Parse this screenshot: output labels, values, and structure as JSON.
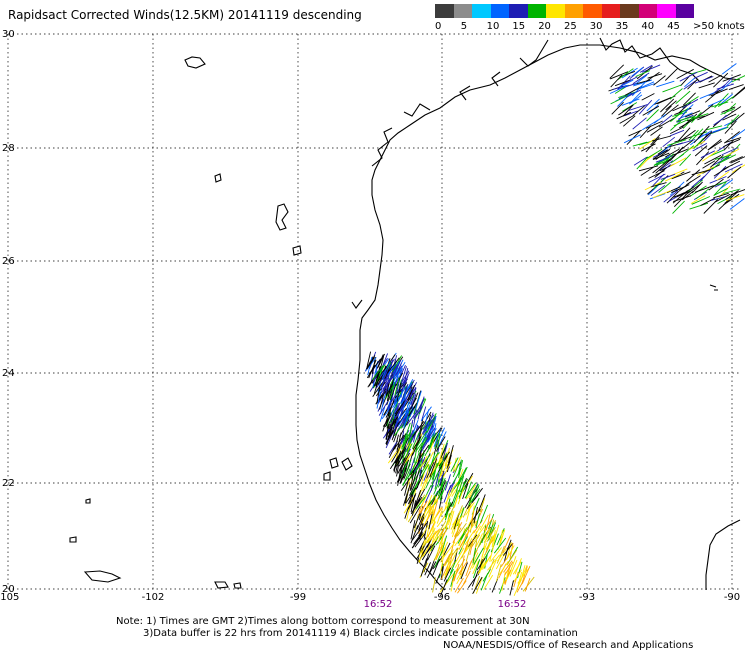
{
  "title": "Rapidsact Corrected Winds(12.5KM) 20141119 descending",
  "legend": {
    "colors": [
      "#3c3c3c",
      "#8c8c8c",
      "#00c8ff",
      "#0064ff",
      "#1e1eb4",
      "#00b400",
      "#ffe600",
      "#ffa000",
      "#ff5a00",
      "#e61e1e",
      "#6b3a1e",
      "#d20078",
      "#ff00ff",
      "#5a00a0"
    ],
    "ticks": [
      "0",
      "5",
      "10",
      "15",
      "20",
      "25",
      "30",
      "35",
      "40",
      "45",
      ">50 knots"
    ]
  },
  "axes": {
    "lon_labels": [
      "-105",
      "-102",
      "-99",
      "-96",
      "-93",
      "-90"
    ],
    "lat_labels": [
      "30",
      "28",
      "26",
      "24",
      "22",
      "20"
    ]
  },
  "pass_times": [
    "16:52",
    "16:52"
  ],
  "notes": {
    "line1": "Note: 1) Times are GMT 2)Times along bottom correspond to measurement at 30N",
    "line2": "3)Data buffer is 22 hrs from 20141119 4) Black circles indicate possible contamination",
    "line3": "NOAA/NESDIS/Office of Research and Applications"
  }
}
